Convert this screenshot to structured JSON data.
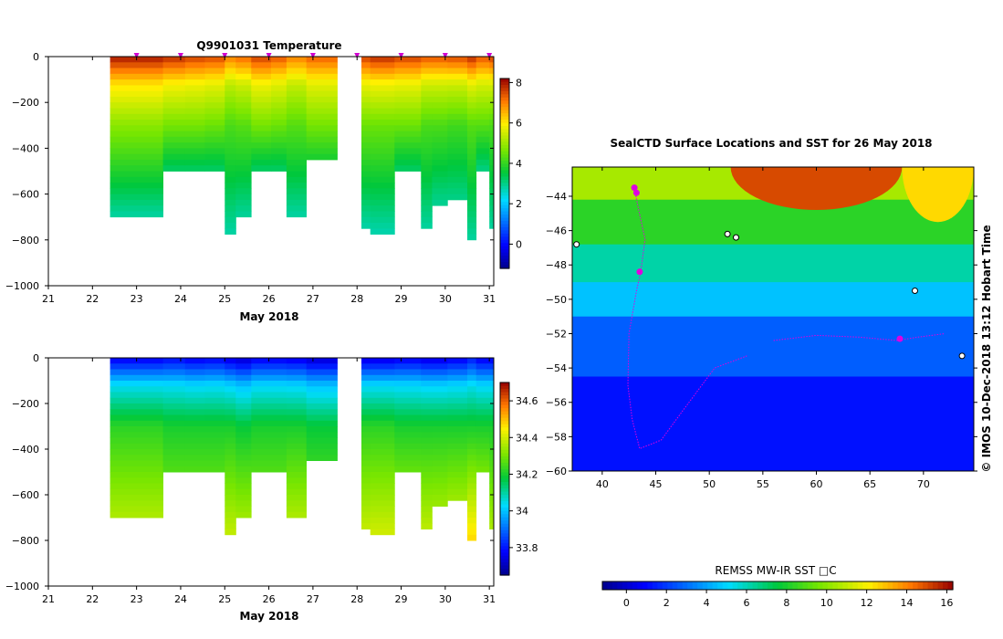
{
  "chart_data": [
    {
      "type": "heatmap",
      "title": "Q9901031  Temperature",
      "xlabel": "May 2018",
      "ylabel": "",
      "xlim": [
        21,
        31.1
      ],
      "ylim": [
        -1000,
        0
      ],
      "x_ticks": [
        "21",
        "22",
        "23",
        "24",
        "25",
        "26",
        "27",
        "28",
        "29",
        "30",
        "31"
      ],
      "y_ticks": [
        "0",
        "−200",
        "−400",
        "−600",
        "−800",
        "−1000"
      ],
      "colorbar": {
        "min": -1.2,
        "max": 8.2,
        "ticks": [
          "0",
          "2",
          "4",
          "6",
          "8"
        ]
      },
      "marker_days": [
        23,
        24,
        25,
        26,
        27,
        28,
        29,
        30,
        31
      ],
      "profiles": [
        {
          "start": 22.4,
          "end": 23.6,
          "max_depth": 700,
          "surface_temp": 8.0,
          "mid_temp": 4.8,
          "deep_temp": 2.8
        },
        {
          "start": 23.6,
          "end": 24.1,
          "max_depth": 500,
          "surface_temp": 7.8,
          "mid_temp": 4.6,
          "deep_temp": 3.2
        },
        {
          "start": 24.1,
          "end": 24.55,
          "max_depth": 500,
          "surface_temp": 7.6,
          "mid_temp": 4.6,
          "deep_temp": 3.2
        },
        {
          "start": 24.55,
          "end": 25.0,
          "max_depth": 500,
          "surface_temp": 7.5,
          "mid_temp": 4.5,
          "deep_temp": 3.2
        },
        {
          "start": 25.0,
          "end": 25.25,
          "max_depth": 770,
          "surface_temp": 7.0,
          "mid_temp": 4.2,
          "deep_temp": 2.8
        },
        {
          "start": 25.25,
          "end": 25.6,
          "max_depth": 690,
          "surface_temp": 7.2,
          "mid_temp": 4.3,
          "deep_temp": 2.9
        },
        {
          "start": 25.6,
          "end": 26.05,
          "max_depth": 500,
          "surface_temp": 7.6,
          "mid_temp": 4.6,
          "deep_temp": 3.2
        },
        {
          "start": 26.05,
          "end": 26.4,
          "max_depth": 500,
          "surface_temp": 7.4,
          "mid_temp": 4.5,
          "deep_temp": 3.2
        },
        {
          "start": 26.4,
          "end": 26.85,
          "max_depth": 700,
          "surface_temp": 7.0,
          "mid_temp": 4.3,
          "deep_temp": 2.8
        },
        {
          "start": 26.85,
          "end": 27.55,
          "max_depth": 450,
          "surface_temp": 7.3,
          "mid_temp": 4.6,
          "deep_temp": 3.4
        },
        {
          "start": 28.1,
          "end": 28.3,
          "max_depth": 740,
          "surface_temp": 7.6,
          "mid_temp": 4.5,
          "deep_temp": 2.8
        },
        {
          "start": 28.3,
          "end": 28.85,
          "max_depth": 780,
          "surface_temp": 7.8,
          "mid_temp": 4.5,
          "deep_temp": 2.7
        },
        {
          "start": 28.85,
          "end": 29.45,
          "max_depth": 500,
          "surface_temp": 7.6,
          "mid_temp": 4.5,
          "deep_temp": 3.2
        },
        {
          "start": 29.45,
          "end": 29.7,
          "max_depth": 760,
          "surface_temp": 7.4,
          "mid_temp": 4.2,
          "deep_temp": 2.8
        },
        {
          "start": 29.7,
          "end": 30.05,
          "max_depth": 650,
          "surface_temp": 7.4,
          "mid_temp": 4.2,
          "deep_temp": 2.9
        },
        {
          "start": 30.05,
          "end": 30.5,
          "max_depth": 620,
          "surface_temp": 7.5,
          "mid_temp": 4.1,
          "deep_temp": 3.0
        },
        {
          "start": 30.5,
          "end": 30.7,
          "max_depth": 810,
          "surface_temp": 7.8,
          "mid_temp": 4.3,
          "deep_temp": 2.8
        },
        {
          "start": 30.7,
          "end": 31.0,
          "max_depth": 500,
          "surface_temp": 7.4,
          "mid_temp": 4.3,
          "deep_temp": 3.0
        },
        {
          "start": 31.0,
          "end": 31.1,
          "max_depth": 760,
          "surface_temp": 7.6,
          "mid_temp": 4.2,
          "deep_temp": 2.8
        }
      ]
    },
    {
      "type": "heatmap",
      "title": "",
      "xlabel": "May 2018",
      "ylabel": "",
      "xlim": [
        21,
        31.1
      ],
      "ylim": [
        -1000,
        0
      ],
      "x_ticks": [
        "21",
        "22",
        "23",
        "24",
        "25",
        "26",
        "27",
        "28",
        "29",
        "30",
        "31"
      ],
      "y_ticks": [
        "0",
        "−200",
        "−400",
        "−600",
        "−800",
        "−1000"
      ],
      "colorbar": {
        "min": 33.65,
        "max": 34.7,
        "ticks": [
          "33.8",
          "34",
          "34.2",
          "34.4",
          "34.6"
        ]
      },
      "profiles": [
        {
          "start": 22.4,
          "end": 23.6,
          "max_depth": 700,
          "surface_sal": 33.76,
          "mid_sal": 34.22,
          "deep_sal": 34.36
        },
        {
          "start": 23.6,
          "end": 24.1,
          "max_depth": 500,
          "surface_sal": 33.78,
          "mid_sal": 34.2,
          "deep_sal": 34.26
        },
        {
          "start": 24.1,
          "end": 24.55,
          "max_depth": 500,
          "surface_sal": 33.76,
          "mid_sal": 34.2,
          "deep_sal": 34.26
        },
        {
          "start": 24.55,
          "end": 25.0,
          "max_depth": 500,
          "surface_sal": 33.77,
          "mid_sal": 34.2,
          "deep_sal": 34.26
        },
        {
          "start": 25.0,
          "end": 25.25,
          "max_depth": 770,
          "surface_sal": 33.74,
          "mid_sal": 34.2,
          "deep_sal": 34.38
        },
        {
          "start": 25.25,
          "end": 25.6,
          "max_depth": 690,
          "surface_sal": 33.72,
          "mid_sal": 34.18,
          "deep_sal": 34.34
        },
        {
          "start": 25.6,
          "end": 26.05,
          "max_depth": 500,
          "surface_sal": 33.76,
          "mid_sal": 34.2,
          "deep_sal": 34.26
        },
        {
          "start": 26.05,
          "end": 26.4,
          "max_depth": 500,
          "surface_sal": 33.76,
          "mid_sal": 34.2,
          "deep_sal": 34.26
        },
        {
          "start": 26.4,
          "end": 26.85,
          "max_depth": 700,
          "surface_sal": 33.75,
          "mid_sal": 34.2,
          "deep_sal": 34.36
        },
        {
          "start": 26.85,
          "end": 27.55,
          "max_depth": 450,
          "surface_sal": 33.72,
          "mid_sal": 34.18,
          "deep_sal": 34.24
        },
        {
          "start": 28.1,
          "end": 28.3,
          "max_depth": 740,
          "surface_sal": 33.74,
          "mid_sal": 34.22,
          "deep_sal": 34.38
        },
        {
          "start": 28.3,
          "end": 28.85,
          "max_depth": 780,
          "surface_sal": 33.74,
          "mid_sal": 34.22,
          "deep_sal": 34.4
        },
        {
          "start": 28.85,
          "end": 29.45,
          "max_depth": 500,
          "surface_sal": 33.76,
          "mid_sal": 34.2,
          "deep_sal": 34.28
        },
        {
          "start": 29.45,
          "end": 29.7,
          "max_depth": 760,
          "surface_sal": 33.74,
          "mid_sal": 34.2,
          "deep_sal": 34.38
        },
        {
          "start": 29.7,
          "end": 30.05,
          "max_depth": 650,
          "surface_sal": 33.74,
          "mid_sal": 34.2,
          "deep_sal": 34.34
        },
        {
          "start": 30.05,
          "end": 30.5,
          "max_depth": 620,
          "surface_sal": 33.76,
          "mid_sal": 34.2,
          "deep_sal": 34.34
        },
        {
          "start": 30.5,
          "end": 30.7,
          "max_depth": 810,
          "surface_sal": 33.8,
          "mid_sal": 34.2,
          "deep_sal": 34.48
        },
        {
          "start": 30.7,
          "end": 31.0,
          "max_depth": 500,
          "surface_sal": 33.76,
          "mid_sal": 34.2,
          "deep_sal": 34.3
        },
        {
          "start": 31.0,
          "end": 31.1,
          "max_depth": 760,
          "surface_sal": 33.76,
          "mid_sal": 34.2,
          "deep_sal": 34.36
        }
      ]
    },
    {
      "type": "heatmap",
      "title": "SealCTD Surface Locations and SST for 26 May 2018",
      "xlabel": "",
      "ylabel": "",
      "xlim": [
        37.2,
        74.7
      ],
      "ylim": [
        -60,
        -42.3
      ],
      "x_ticks": [
        "40",
        "45",
        "50",
        "55",
        "60",
        "65",
        "70"
      ],
      "y_ticks": [
        "−44",
        "−46",
        "−48",
        "−50",
        "−52",
        "−54",
        "−56",
        "−58",
        "−60"
      ],
      "colorbar": {
        "label": "REMSS MW-IR SST □C",
        "min": -1.2,
        "max": 16.3,
        "ticks": [
          "0",
          "2",
          "4",
          "6",
          "8",
          "10",
          "12",
          "14",
          "16"
        ]
      },
      "sst_bands": [
        {
          "lat_top": -42.3,
          "lat_bottom": -44.2,
          "sst": 10.5
        },
        {
          "lat_top": -44.2,
          "lat_bottom": -46.8,
          "sst": 8.3
        },
        {
          "lat_top": -46.8,
          "lat_bottom": -49.0,
          "sst": 6.2
        },
        {
          "lat_top": -49.0,
          "lat_bottom": -51.0,
          "sst": 4.6
        },
        {
          "lat_top": -51.0,
          "lat_bottom": -54.5,
          "sst": 2.7
        },
        {
          "lat_top": -54.5,
          "lat_bottom": -60.0,
          "sst": 1.2
        }
      ],
      "warm_patches": [
        {
          "lon1": 52,
          "lon2": 68,
          "lat1": -42.3,
          "lat2": -44.8,
          "sst": 15.0
        },
        {
          "lon1": 68,
          "lon2": 74.7,
          "lat1": -42.3,
          "lat2": -45.5,
          "sst": 12.5
        }
      ],
      "tracks": [
        [
          [
            43,
            -43.5
          ],
          [
            43.3,
            -44.5
          ],
          [
            44,
            -46.5
          ],
          [
            43.6,
            -48.4
          ],
          [
            43.2,
            -49.5
          ],
          [
            42.5,
            -52
          ],
          [
            42.4,
            -55
          ],
          [
            42.8,
            -57
          ],
          [
            43.5,
            -58.7
          ],
          [
            45.5,
            -58.2
          ],
          [
            47.5,
            -56.5
          ],
          [
            50.5,
            -54
          ],
          [
            53.5,
            -53.3
          ]
        ],
        [
          [
            56,
            -52.4
          ],
          [
            60,
            -52.1
          ],
          [
            64,
            -52.2
          ],
          [
            67.5,
            -52.4
          ],
          [
            69.5,
            -52.2
          ],
          [
            72,
            -52.0
          ]
        ]
      ],
      "seal_positions": [
        [
          43,
          -43.5
        ],
        [
          43.2,
          -43.8
        ],
        [
          43.5,
          -48.4
        ],
        [
          67.8,
          -52.3
        ]
      ],
      "islands": [
        [
          37.6,
          -46.8
        ],
        [
          51.7,
          -46.2
        ],
        [
          52.5,
          -46.4
        ],
        [
          69.2,
          -49.5
        ],
        [
          73.6,
          -53.3
        ]
      ]
    }
  ],
  "attribution": "© IMOS 10-Dec-2018 13:12 Hobart Time"
}
